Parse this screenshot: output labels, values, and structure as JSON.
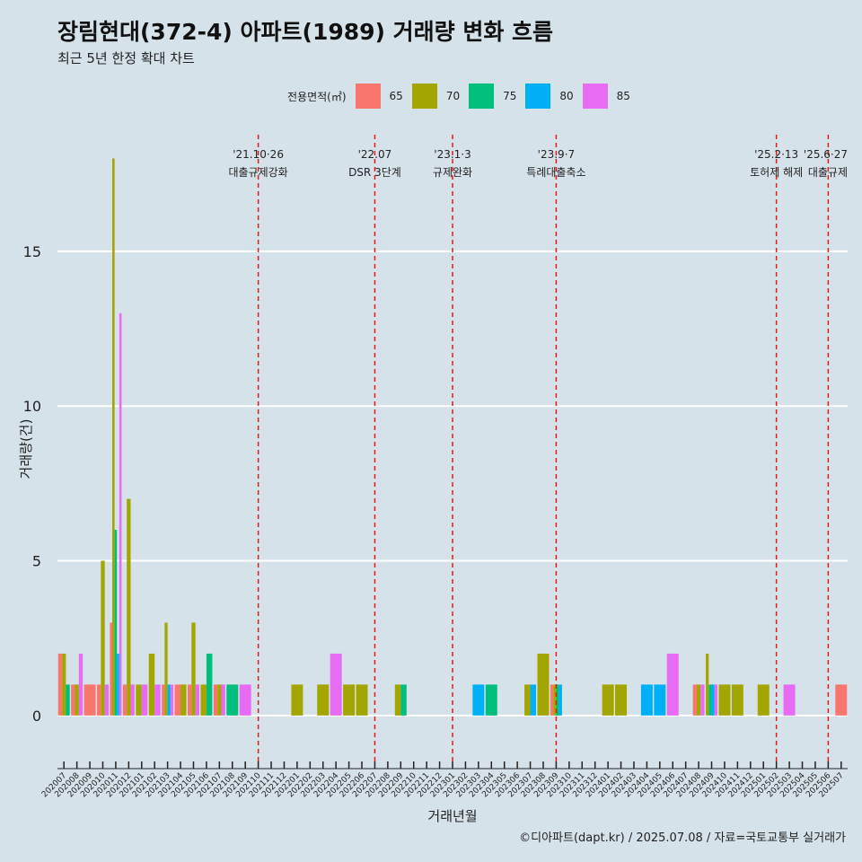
{
  "title": "장림현대(372-4) 아파트(1989) 거래량 변화 흐름",
  "subtitle": "최근 5년 한정 확대 차트",
  "caption": "©디아파트(dapt.kr) / 2025.07.08 / 자료=국토교통부 실거래가",
  "legend": {
    "title": "전용면적(㎡)",
    "placement": "top",
    "items": [
      {
        "label": "65",
        "color": "#F8766D"
      },
      {
        "label": "70",
        "color": "#A3A500"
      },
      {
        "label": "75",
        "color": "#00BF7D"
      },
      {
        "label": "80",
        "color": "#00B0F6"
      },
      {
        "label": "85",
        "color": "#E76BF3"
      }
    ]
  },
  "chart_data": {
    "type": "bar",
    "title": "장림현대(372-4) 아파트(1989) 거래량 변화 흐름",
    "subtitle": "최근 5년 한정 확대 차트",
    "xlabel": "거래년월",
    "ylabel": "거래량(건)",
    "ylim": [
      -1.6,
      19
    ],
    "yticks": [
      0,
      5,
      10,
      15
    ],
    "grid": true,
    "categories": [
      "202007",
      "202008",
      "202009",
      "202010",
      "202011",
      "202012",
      "202101",
      "202102",
      "202103",
      "202104",
      "202105",
      "202106",
      "202107",
      "202108",
      "202109",
      "202110",
      "202111",
      "202112",
      "202201",
      "202202",
      "202203",
      "202204",
      "202205",
      "202206",
      "202207",
      "202208",
      "202209",
      "202210",
      "202211",
      "202212",
      "202301",
      "202302",
      "202303",
      "202304",
      "202305",
      "202306",
      "202307",
      "202308",
      "202309",
      "202310",
      "202311",
      "202312",
      "202401",
      "202402",
      "202403",
      "202404",
      "202405",
      "202406",
      "202407",
      "202408",
      "202409",
      "202410",
      "202411",
      "202412",
      "202501",
      "202502",
      "202503",
      "202504",
      "202505",
      "202506",
      "202507"
    ],
    "series": [
      {
        "name": "65",
        "color": "#F8766D",
        "values": [
          2,
          1,
          1,
          1,
          3,
          1,
          0,
          0,
          1,
          1,
          1,
          0,
          1,
          0,
          0,
          0,
          0,
          0,
          0,
          0,
          0,
          0,
          0,
          0,
          0,
          0,
          0,
          0,
          0,
          0,
          0,
          0,
          0,
          0,
          0,
          0,
          0,
          0,
          1,
          0,
          0,
          0,
          0,
          0,
          0,
          0,
          0,
          0,
          0,
          1,
          0,
          0,
          0,
          0,
          0,
          0,
          0,
          0,
          0,
          0,
          1
        ]
      },
      {
        "name": "70",
        "color": "#A3A500",
        "values": [
          2,
          1,
          0,
          5,
          18,
          7,
          1,
          2,
          3,
          1,
          3,
          1,
          1,
          0,
          0,
          0,
          0,
          0,
          1,
          0,
          1,
          0,
          1,
          1,
          0,
          0,
          1,
          0,
          0,
          0,
          0,
          0,
          0,
          0,
          0,
          0,
          1,
          2,
          1,
          0,
          0,
          0,
          1,
          1,
          0,
          0,
          0,
          0,
          0,
          1,
          2,
          1,
          1,
          0,
          1,
          0,
          0,
          0,
          0,
          0,
          0
        ]
      },
      {
        "name": "75",
        "color": "#00BF7D",
        "values": [
          1,
          0,
          0,
          0,
          6,
          0,
          0,
          0,
          0,
          0,
          0,
          2,
          0,
          1,
          0,
          0,
          0,
          0,
          0,
          0,
          0,
          0,
          0,
          0,
          0,
          0,
          1,
          0,
          0,
          0,
          0,
          0,
          0,
          1,
          0,
          0,
          0,
          0,
          1,
          0,
          0,
          0,
          0,
          0,
          0,
          0,
          0,
          0,
          0,
          0,
          1,
          0,
          0,
          0,
          0,
          0,
          0,
          0,
          0,
          0,
          0
        ]
      },
      {
        "name": "80",
        "color": "#00B0F6",
        "values": [
          0,
          0,
          0,
          0,
          2,
          0,
          0,
          0,
          1,
          0,
          0,
          0,
          0,
          0,
          0,
          0,
          0,
          0,
          0,
          0,
          0,
          0,
          0,
          0,
          0,
          0,
          0,
          0,
          0,
          0,
          0,
          0,
          1,
          0,
          0,
          0,
          1,
          0,
          1,
          0,
          0,
          0,
          0,
          0,
          0,
          1,
          1,
          0,
          0,
          0,
          1,
          0,
          0,
          0,
          0,
          0,
          0,
          0,
          0,
          0,
          0
        ]
      },
      {
        "name": "85",
        "color": "#E76BF3",
        "values": [
          0,
          2,
          0,
          1,
          13,
          1,
          1,
          1,
          1,
          0,
          1,
          0,
          1,
          0,
          1,
          0,
          0,
          0,
          0,
          0,
          0,
          2,
          0,
          0,
          0,
          0,
          0,
          0,
          0,
          0,
          0,
          0,
          0,
          0,
          0,
          0,
          0,
          0,
          0,
          0,
          0,
          0,
          0,
          0,
          0,
          0,
          0,
          2,
          0,
          1,
          1,
          0,
          0,
          0,
          0,
          0,
          1,
          0,
          0,
          0,
          0
        ]
      }
    ],
    "annotations": [
      {
        "at": "202110",
        "date": "'21.10·26",
        "text": "대출규제강화"
      },
      {
        "at": "202207",
        "date": "'22.07",
        "text": "DSR 3단계"
      },
      {
        "at": "202301",
        "date": "'23.1·3",
        "text": "규제완화"
      },
      {
        "at": "202309",
        "date": "'23.9·7",
        "text": "특례대출축소"
      },
      {
        "at": "202502",
        "date": "'25.2·13",
        "text": "토허제 해제"
      },
      {
        "at": "202506",
        "date": "'25.6·27",
        "text": "대출규제"
      }
    ]
  }
}
